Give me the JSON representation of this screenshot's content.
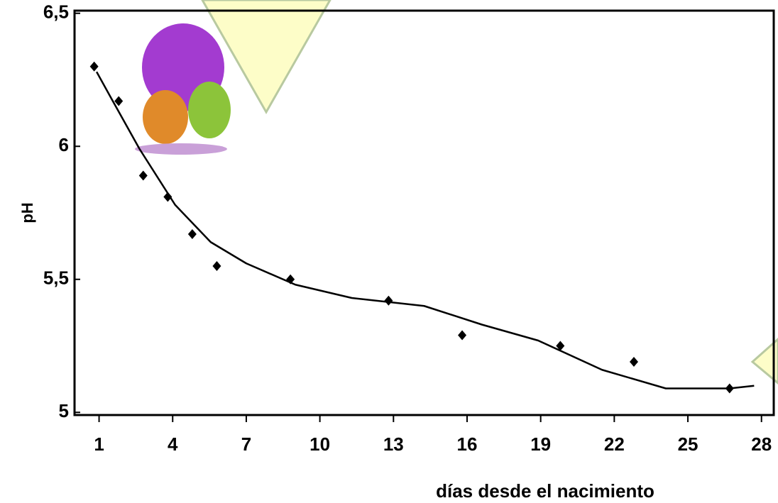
{
  "chart_data": {
    "type": "scatter",
    "x_label": "días  desde el nacimiento",
    "y_label": "pH",
    "series": [
      {
        "color": "#000000",
        "x": [
          0.8,
          1.8,
          2.8,
          3.8,
          4.8,
          5.8,
          8.8,
          12.8,
          15.8,
          19.8,
          22.8,
          26.7
        ],
        "values": [
          6.3,
          6.17,
          5.89,
          5.81,
          5.67,
          5.55,
          5.5,
          5.42,
          5.29,
          5.25,
          5.19,
          5.09
        ]
      },
      {
        "color": "#000000",
        "style": "line",
        "x": [
          0.9,
          1.5,
          2.65,
          4.1,
          5.55,
          7.0,
          9.0,
          11.3,
          14.25,
          16.6,
          18.9,
          21.5,
          24.1,
          25.8,
          26.7,
          27.7
        ],
        "values": [
          6.28,
          6.18,
          5.99,
          5.78,
          5.64,
          5.56,
          5.48,
          5.43,
          5.4,
          5.33,
          5.27,
          5.16,
          5.09,
          5.09,
          5.09,
          5.1
        ]
      }
    ],
    "xlim": [
      0,
      28.5
    ],
    "ylim": [
      4.99,
      6.51
    ],
    "xticks": [
      1,
      4,
      7,
      10,
      13,
      16,
      19,
      22,
      25,
      28
    ],
    "yticks": [
      {
        "value": 5,
        "label": "5"
      },
      {
        "value": 5.5,
        "label": "5,5"
      },
      {
        "value": 6,
        "label": "6"
      },
      {
        "value": 6.5,
        "label": "6,5"
      }
    ]
  }
}
